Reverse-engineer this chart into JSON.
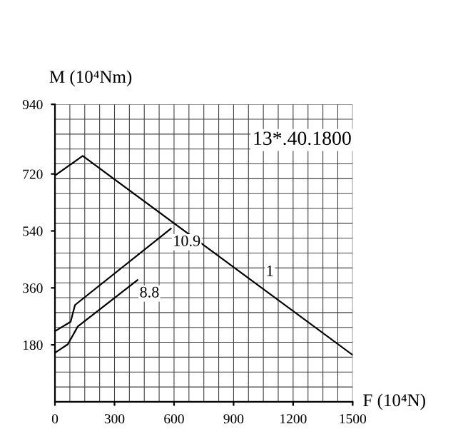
{
  "chart_data": {
    "type": "line",
    "xlabel": "F (10⁴N)",
    "ylabel": "M (10⁴Nm)",
    "xlim": [
      0,
      1500
    ],
    "ylim": [
      0,
      940
    ],
    "xticks": [
      0,
      300,
      600,
      900,
      1200,
      1500
    ],
    "yticks": [
      180,
      360,
      540,
      720,
      940
    ],
    "grid": true,
    "legend": false,
    "marker": "none",
    "line_style": "solid",
    "series": [
      {
        "name": "1",
        "color": "#000000",
        "x": [
          0,
          140,
          1500
        ],
        "values": [
          715,
          777,
          148
        ]
      },
      {
        "name": "10.9",
        "color": "#000000",
        "x": [
          0,
          79,
          101,
          584
        ],
        "values": [
          223,
          253,
          306,
          547
        ]
      },
      {
        "name": "8.8",
        "color": "#000000",
        "x": [
          0,
          65,
          115,
          416
        ],
        "values": [
          155,
          182,
          238,
          385
        ]
      }
    ],
    "annotations": [
      "13*.40.1800"
    ]
  }
}
